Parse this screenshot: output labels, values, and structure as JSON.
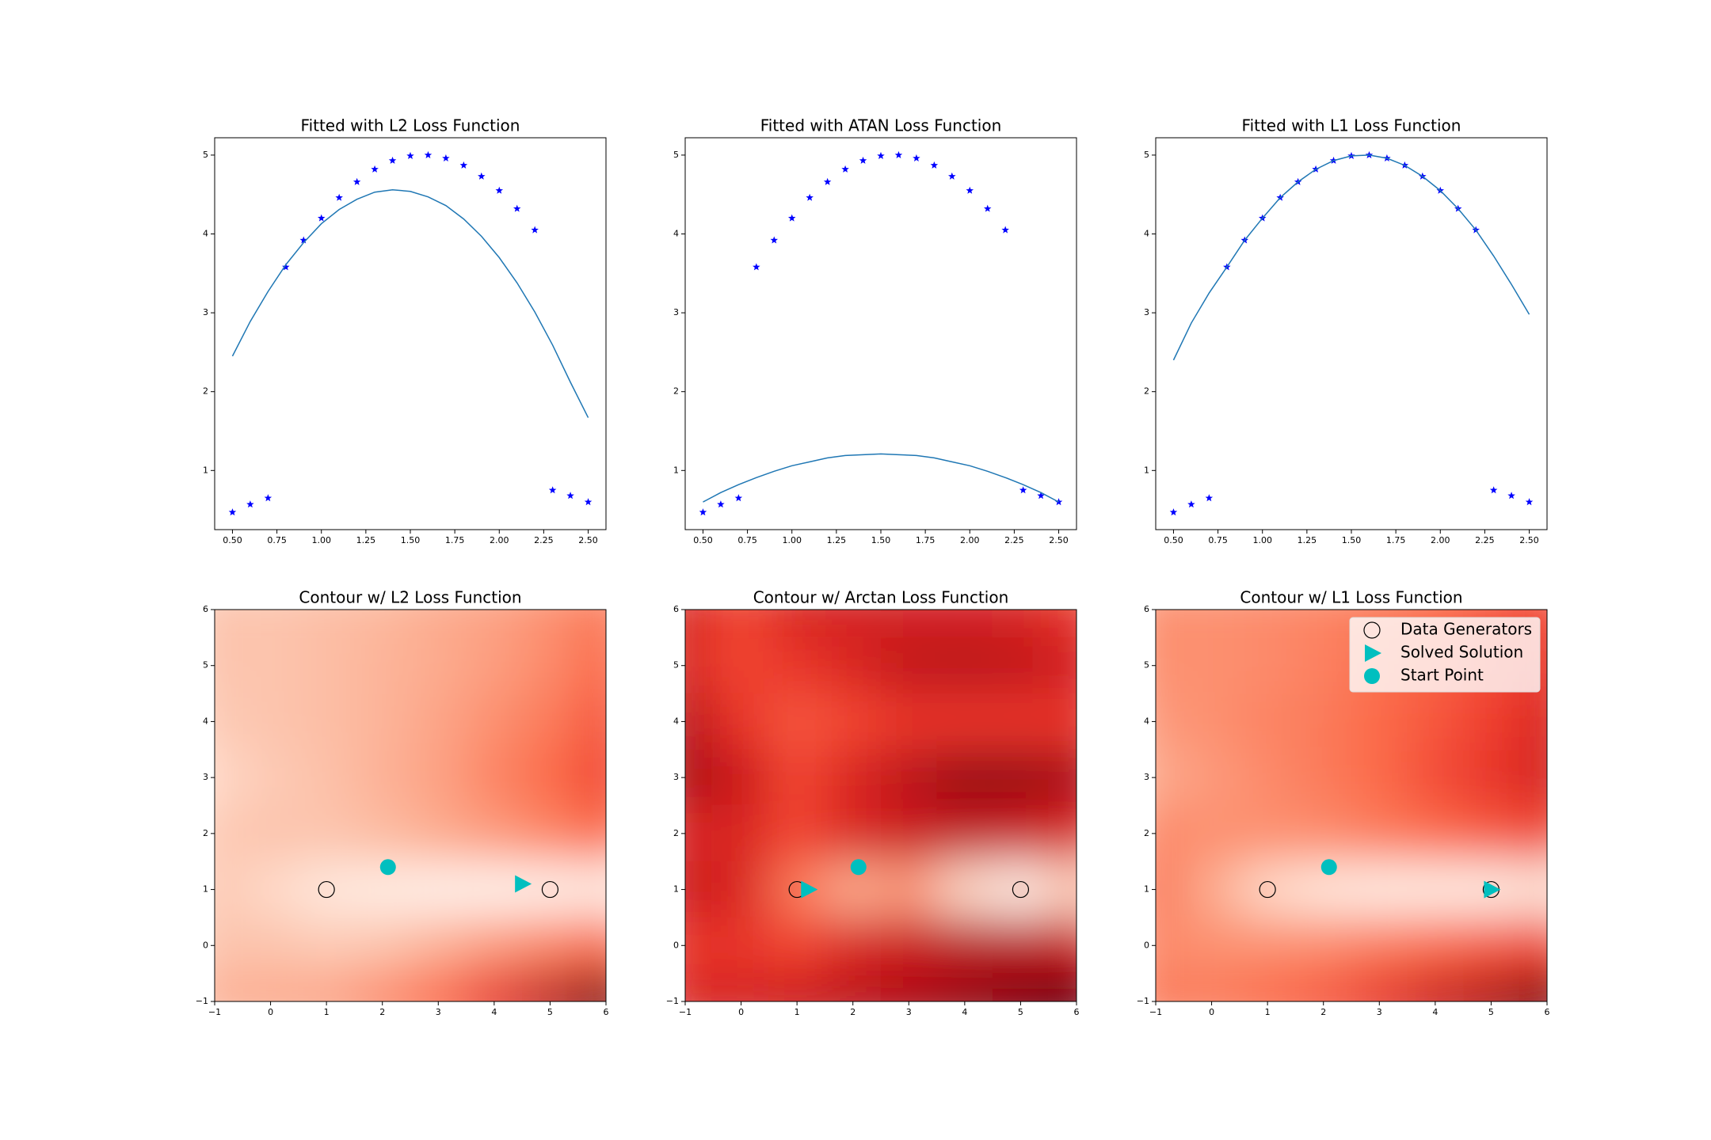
{
  "chart_data": [
    {
      "type": "scatter",
      "title": "Fitted with L2 Loss Function",
      "x": [
        0.5,
        0.6,
        0.7,
        0.8,
        0.9,
        1.0,
        1.1,
        1.2,
        1.3,
        1.4,
        1.5,
        1.6,
        1.7,
        1.8,
        1.9,
        2.0,
        2.1,
        2.2,
        2.3,
        2.4,
        2.5
      ],
      "series": [
        {
          "style": "points",
          "marker": "star",
          "color": "#0000ff",
          "values": [
            0.47,
            0.57,
            0.65,
            3.58,
            3.92,
            4.2,
            4.46,
            4.66,
            4.82,
            4.93,
            4.99,
            5.0,
            4.96,
            4.87,
            4.73,
            4.55,
            4.32,
            4.05,
            0.75,
            0.68,
            0.6
          ]
        },
        {
          "style": "line",
          "color": "#1f77b4",
          "values": [
            2.45,
            2.89,
            3.27,
            3.61,
            3.89,
            4.13,
            4.31,
            4.44,
            4.53,
            4.56,
            4.54,
            4.47,
            4.36,
            4.19,
            3.97,
            3.7,
            3.38,
            3.01,
            2.59,
            2.12,
            1.67
          ]
        }
      ],
      "xlim": [
        0.4,
        2.6
      ],
      "ylim": [
        0.25,
        5.22
      ],
      "xticks": [
        {
          "value": 0.5,
          "label": "0.50"
        },
        {
          "value": 0.75,
          "label": "0.75"
        },
        {
          "value": 1.0,
          "label": "1.00"
        },
        {
          "value": 1.25,
          "label": "1.25"
        },
        {
          "value": 1.5,
          "label": "1.50"
        },
        {
          "value": 1.75,
          "label": "1.75"
        },
        {
          "value": 2.0,
          "label": "2.00"
        },
        {
          "value": 2.25,
          "label": "2.25"
        },
        {
          "value": 2.5,
          "label": "2.50"
        }
      ],
      "yticks": [
        1,
        2,
        3,
        4,
        5
      ]
    },
    {
      "type": "scatter",
      "title": "Fitted with ATAN Loss Function",
      "x": [
        0.5,
        0.6,
        0.7,
        0.8,
        0.9,
        1.0,
        1.1,
        1.2,
        1.3,
        1.4,
        1.5,
        1.6,
        1.7,
        1.8,
        1.9,
        2.0,
        2.1,
        2.2,
        2.3,
        2.4,
        2.5
      ],
      "series": [
        {
          "style": "points",
          "marker": "star",
          "color": "#0000ff",
          "values": [
            0.47,
            0.57,
            0.65,
            3.58,
            3.92,
            4.2,
            4.46,
            4.66,
            4.82,
            4.93,
            4.99,
            5.0,
            4.96,
            4.87,
            4.73,
            4.55,
            4.32,
            4.05,
            0.75,
            0.68,
            0.6
          ]
        },
        {
          "style": "line",
          "color": "#1f77b4",
          "values": [
            0.6,
            0.72,
            0.82,
            0.91,
            0.99,
            1.06,
            1.11,
            1.16,
            1.19,
            1.2,
            1.21,
            1.2,
            1.19,
            1.16,
            1.11,
            1.06,
            0.99,
            0.91,
            0.82,
            0.72,
            0.6
          ]
        }
      ],
      "xlim": [
        0.4,
        2.6
      ],
      "ylim": [
        0.25,
        5.22
      ],
      "xticks": [
        {
          "value": 0.5,
          "label": "0.50"
        },
        {
          "value": 0.75,
          "label": "0.75"
        },
        {
          "value": 1.0,
          "label": "1.00"
        },
        {
          "value": 1.25,
          "label": "1.25"
        },
        {
          "value": 1.5,
          "label": "1.50"
        },
        {
          "value": 1.75,
          "label": "1.75"
        },
        {
          "value": 2.0,
          "label": "2.00"
        },
        {
          "value": 2.25,
          "label": "2.25"
        },
        {
          "value": 2.5,
          "label": "2.50"
        }
      ],
      "yticks": [
        1,
        2,
        3,
        4,
        5
      ]
    },
    {
      "type": "scatter",
      "title": "Fitted with L1 Loss Function",
      "x": [
        0.5,
        0.6,
        0.7,
        0.8,
        0.9,
        1.0,
        1.1,
        1.2,
        1.3,
        1.4,
        1.5,
        1.6,
        1.7,
        1.8,
        1.9,
        2.0,
        2.1,
        2.2,
        2.3,
        2.4,
        2.5
      ],
      "series": [
        {
          "style": "points",
          "marker": "star",
          "color": "#0000ff",
          "values": [
            0.47,
            0.57,
            0.65,
            3.58,
            3.92,
            4.2,
            4.46,
            4.66,
            4.82,
            4.93,
            4.99,
            5.0,
            4.96,
            4.87,
            4.73,
            4.55,
            4.32,
            4.05,
            0.75,
            0.68,
            0.6
          ]
        },
        {
          "style": "line",
          "color": "#1f77b4",
          "values": [
            2.4,
            2.87,
            3.25,
            3.58,
            3.92,
            4.2,
            4.46,
            4.66,
            4.82,
            4.93,
            4.99,
            5.0,
            4.96,
            4.87,
            4.73,
            4.55,
            4.32,
            4.05,
            3.72,
            3.36,
            2.98
          ]
        }
      ],
      "xlim": [
        0.4,
        2.6
      ],
      "ylim": [
        0.25,
        5.22
      ],
      "xticks": [
        {
          "value": 0.5,
          "label": "0.50"
        },
        {
          "value": 0.75,
          "label": "0.75"
        },
        {
          "value": 1.0,
          "label": "1.00"
        },
        {
          "value": 1.25,
          "label": "1.25"
        },
        {
          "value": 1.5,
          "label": "1.50"
        },
        {
          "value": 1.75,
          "label": "1.75"
        },
        {
          "value": 2.0,
          "label": "2.00"
        },
        {
          "value": 2.25,
          "label": "2.25"
        },
        {
          "value": 2.5,
          "label": "2.50"
        }
      ],
      "yticks": [
        1,
        2,
        3,
        4,
        5
      ]
    },
    {
      "type": "contour",
      "title": "Contour w/ L2 Loss Function",
      "colormap": "Reds",
      "grid_x": [
        -1,
        0,
        1,
        2,
        3,
        4,
        5,
        6
      ],
      "grid_y": [
        6,
        5,
        4,
        3,
        2,
        1,
        0,
        -1
      ],
      "z": [
        [
          0.22,
          0.22,
          0.24,
          0.26,
          0.3,
          0.33,
          0.38,
          0.45
        ],
        [
          0.22,
          0.22,
          0.24,
          0.27,
          0.3,
          0.34,
          0.4,
          0.5
        ],
        [
          0.2,
          0.22,
          0.24,
          0.27,
          0.32,
          0.38,
          0.45,
          0.55
        ],
        [
          0.15,
          0.2,
          0.23,
          0.28,
          0.33,
          0.42,
          0.5,
          0.6
        ],
        [
          0.2,
          0.22,
          0.22,
          0.25,
          0.3,
          0.35,
          0.42,
          0.5
        ],
        [
          0.2,
          0.15,
          0.08,
          0.05,
          0.03,
          0.02,
          0.03,
          0.05
        ],
        [
          0.22,
          0.22,
          0.2,
          0.22,
          0.28,
          0.35,
          0.42,
          0.5
        ],
        [
          0.28,
          0.3,
          0.32,
          0.4,
          0.5,
          0.65,
          0.8,
          0.95
        ]
      ],
      "points": [
        {
          "marker": "open-circle",
          "color": "#000000",
          "x": [
            1,
            5
          ],
          "y": [
            1,
            1
          ]
        },
        {
          "marker": "triangle-right",
          "color": "#00bfbf",
          "x": [
            4.5
          ],
          "y": [
            1.1
          ]
        },
        {
          "marker": "circle",
          "color": "#00bfbf",
          "x": [
            2.1
          ],
          "y": [
            1.4
          ]
        }
      ],
      "xlim": [
        -1,
        6
      ],
      "ylim": [
        -1,
        6
      ],
      "xticks": [
        {
          "value": -1,
          "label": "−1"
        },
        0,
        1,
        2,
        3,
        4,
        5,
        6
      ],
      "yticks": [
        {
          "value": -1,
          "label": "−1"
        },
        0,
        1,
        2,
        3,
        4,
        5,
        6
      ]
    },
    {
      "type": "contour",
      "title": "Contour w/ Arctan Loss Function",
      "colormap": "Reds",
      "grid_x": [
        -1,
        0,
        1,
        2,
        3,
        4,
        5,
        6
      ],
      "grid_y": [
        6,
        5,
        4,
        3,
        2,
        1,
        0,
        -1
      ],
      "z": [
        [
          0.7,
          0.6,
          0.7,
          0.72,
          0.72,
          0.72,
          0.7,
          0.65
        ],
        [
          0.7,
          0.6,
          0.65,
          0.7,
          0.78,
          0.8,
          0.78,
          0.72
        ],
        [
          0.8,
          0.65,
          0.55,
          0.6,
          0.65,
          0.65,
          0.65,
          0.65
        ],
        [
          0.85,
          0.75,
          0.6,
          0.7,
          0.8,
          0.9,
          0.9,
          0.85
        ],
        [
          0.7,
          0.7,
          0.6,
          0.7,
          0.75,
          0.78,
          0.75,
          0.7
        ],
        [
          0.75,
          0.7,
          0.45,
          0.3,
          0.35,
          0.15,
          0.05,
          0.2
        ],
        [
          0.65,
          0.65,
          0.6,
          0.7,
          0.75,
          0.8,
          0.8,
          0.75
        ],
        [
          0.7,
          0.72,
          0.75,
          0.8,
          0.85,
          0.9,
          0.95,
          1.0
        ]
      ],
      "points": [
        {
          "marker": "open-circle",
          "color": "#000000",
          "x": [
            1,
            5
          ],
          "y": [
            1,
            1
          ]
        },
        {
          "marker": "triangle-right",
          "color": "#00bfbf",
          "x": [
            1.2
          ],
          "y": [
            1.0
          ]
        },
        {
          "marker": "circle",
          "color": "#00bfbf",
          "x": [
            2.1
          ],
          "y": [
            1.4
          ]
        }
      ],
      "xlim": [
        -1,
        6
      ],
      "ylim": [
        -1,
        6
      ],
      "xticks": [
        {
          "value": -1,
          "label": "−1"
        },
        0,
        1,
        2,
        3,
        4,
        5,
        6
      ],
      "yticks": [
        {
          "value": -1,
          "label": "−1"
        },
        0,
        1,
        2,
        3,
        4,
        5,
        6
      ]
    },
    {
      "type": "contour",
      "title": "Contour w/ L1 Loss Function",
      "colormap": "Reds",
      "grid_x": [
        -1,
        0,
        1,
        2,
        3,
        4,
        5,
        6
      ],
      "grid_y": [
        6,
        5,
        4,
        3,
        2,
        1,
        0,
        -1
      ],
      "z": [
        [
          0.38,
          0.38,
          0.4,
          0.42,
          0.45,
          0.5,
          0.55,
          0.6
        ],
        [
          0.38,
          0.38,
          0.4,
          0.43,
          0.48,
          0.52,
          0.58,
          0.65
        ],
        [
          0.35,
          0.38,
          0.42,
          0.45,
          0.5,
          0.55,
          0.62,
          0.7
        ],
        [
          0.3,
          0.35,
          0.4,
          0.45,
          0.5,
          0.58,
          0.65,
          0.72
        ],
        [
          0.4,
          0.38,
          0.38,
          0.4,
          0.45,
          0.5,
          0.55,
          0.6
        ],
        [
          0.45,
          0.3,
          0.15,
          0.08,
          0.05,
          0.05,
          0.05,
          0.1
        ],
        [
          0.4,
          0.38,
          0.38,
          0.4,
          0.45,
          0.5,
          0.55,
          0.6
        ],
        [
          0.45,
          0.45,
          0.5,
          0.55,
          0.65,
          0.75,
          0.85,
          0.95
        ]
      ],
      "points": [
        {
          "name": "Data Generators",
          "marker": "open-circle",
          "color": "#000000",
          "x": [
            1,
            5
          ],
          "y": [
            1,
            1
          ]
        },
        {
          "name": "Solved Solution",
          "marker": "triangle-right",
          "color": "#00bfbf",
          "x": [
            5.0
          ],
          "y": [
            1.0
          ]
        },
        {
          "name": "Start Point",
          "marker": "circle",
          "color": "#00bfbf",
          "x": [
            2.1
          ],
          "y": [
            1.4
          ]
        }
      ],
      "legend": "upper right",
      "xlim": [
        -1,
        6
      ],
      "ylim": [
        -1,
        6
      ],
      "xticks": [
        {
          "value": -1,
          "label": "−1"
        },
        0,
        1,
        2,
        3,
        4,
        5,
        6
      ],
      "yticks": [
        {
          "value": -1,
          "label": "−1"
        },
        0,
        1,
        2,
        3,
        4,
        5,
        6
      ]
    }
  ]
}
